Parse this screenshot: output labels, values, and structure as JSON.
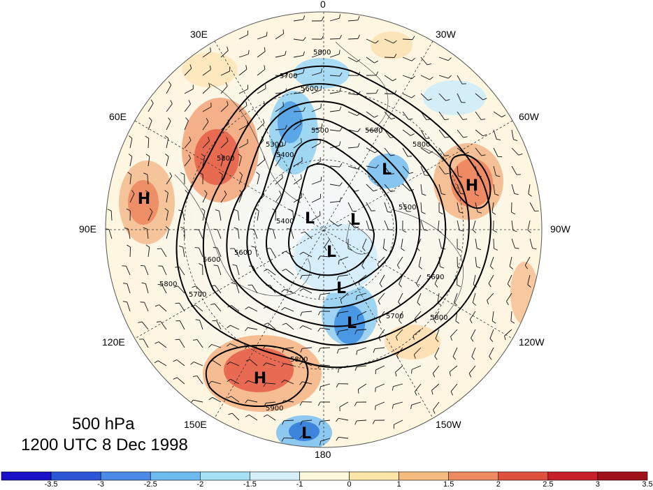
{
  "title": {
    "level": "500 hPa",
    "datetime": "1200 UTC 8 Dec 1998"
  },
  "longitude_labels": {
    "top": "0",
    "top_left": "30E",
    "top_right": "30W",
    "upper_left": "60E",
    "upper_right": "60W",
    "left": "90E",
    "right": "90W",
    "lower_left": "120E",
    "lower_right": "120W",
    "bottom_left": "150E",
    "bottom_right": "150W",
    "bottom": "180"
  },
  "pressure_centers": [
    {
      "label": "H",
      "region": "central Asia"
    },
    {
      "label": "H",
      "region": "North Pacific"
    },
    {
      "label": "H",
      "region": "North Atlantic"
    },
    {
      "label": "L",
      "region": "Siberia"
    },
    {
      "label": "L",
      "region": "Arctic"
    },
    {
      "label": "L",
      "region": "Arctic"
    },
    {
      "label": "L",
      "region": "Canada"
    },
    {
      "label": "L",
      "region": "Canada"
    },
    {
      "label": "L",
      "region": "Greenland"
    },
    {
      "label": "L",
      "region": "Pacific"
    }
  ],
  "contour_labels": [
    "5800",
    "5700",
    "5600",
    "5500",
    "5400",
    "5300",
    "5800",
    "5600",
    "5800",
    "5500",
    "5400",
    "5800",
    "5700",
    "5600",
    "5600",
    "5800",
    "5800",
    "5900",
    "5600",
    "5700"
  ],
  "colorbar": {
    "colors": [
      "#1a10c8",
      "#2d55d8",
      "#4a8be8",
      "#6cbaf0",
      "#a5e0f5",
      "#d6f0fa",
      "#fff8dc",
      "#fde6a8",
      "#f7bb80",
      "#ee8a60",
      "#e0503c",
      "#c8202a",
      "#a0101a"
    ],
    "ticks": [
      "-3.5",
      "-3",
      "-2.5",
      "-2",
      "-1.5",
      "-1",
      "0",
      "1",
      "1.5",
      "2",
      "2.5",
      "3",
      "3.5"
    ]
  }
}
